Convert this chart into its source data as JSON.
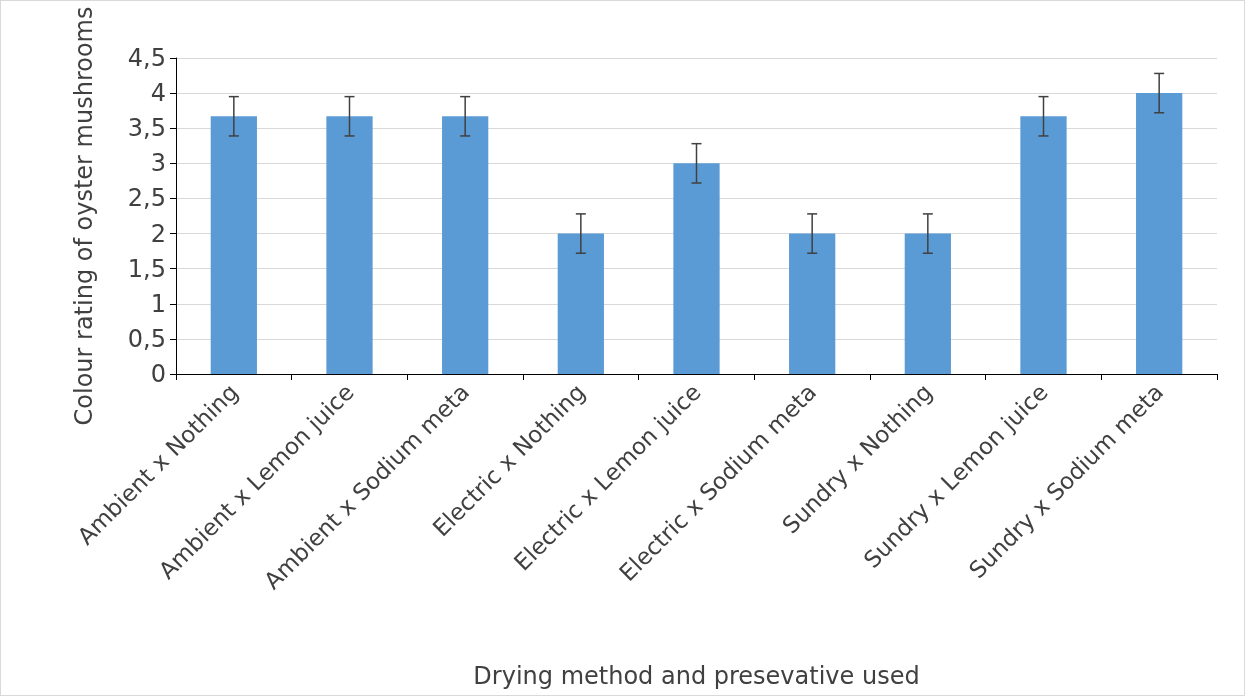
{
  "chart_data": {
    "type": "bar",
    "xlabel": "Drying method and presevative used",
    "ylabel": "Colour rating of oyster mushrooms",
    "categories": [
      "Ambient x Nothing",
      "Ambient x Lemon juice",
      "Ambient x Sodium meta",
      "Electric x Nothing",
      "Electric x Lemon juice",
      "Electric x Sodium meta",
      "Sundry x Nothing",
      "Sundry x Lemon juice",
      "Sundry x Sodium meta"
    ],
    "values": [
      3.67,
      3.67,
      3.67,
      2,
      3,
      2,
      2,
      3.67,
      4
    ],
    "errors": [
      0.28,
      0.28,
      0.28,
      0.28,
      0.28,
      0.28,
      0.28,
      0.28,
      0.28
    ],
    "color": "#5b9bd5",
    "ylim": [
      0,
      4.5
    ],
    "yticks": [
      0,
      {
        "value": 0.5,
        "label": "0,5"
      },
      1,
      {
        "value": 1.5,
        "label": "1,5"
      },
      2,
      {
        "value": 2.5,
        "label": "2,5"
      },
      3,
      {
        "value": 3.5,
        "label": "3,5"
      },
      4,
      {
        "value": 4.5,
        "label": "4,5"
      }
    ],
    "grid": "y"
  }
}
